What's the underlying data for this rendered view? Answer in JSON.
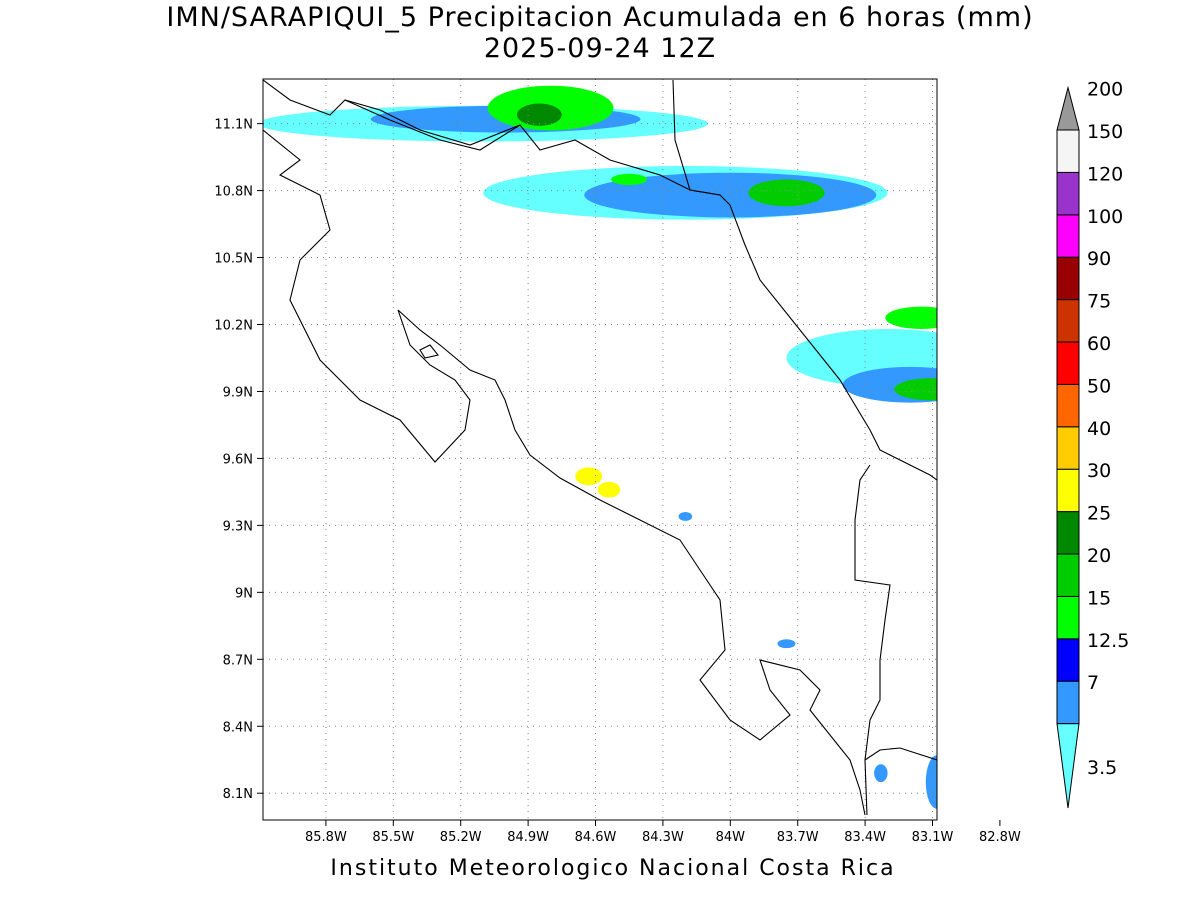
{
  "title_line1": "IMN/SARAPIQUI_5 Precipitacion Acumulada en 6 horas (mm)",
  "title_line2": "2025-09-24 12Z",
  "credit": "Instituto Meteorologico Nacional Costa Rica",
  "map": {
    "lon_range": [
      -86.08,
      -83.08
    ],
    "lat_range": [
      7.98,
      11.3
    ],
    "lon_ticks": [
      {
        "value": -85.8,
        "label": "85.8W"
      },
      {
        "value": -85.5,
        "label": "85.5W"
      },
      {
        "value": -85.2,
        "label": "85.2W"
      },
      {
        "value": -84.9,
        "label": "84.9W"
      },
      {
        "value": -84.6,
        "label": "84.6W"
      },
      {
        "value": -84.3,
        "label": "84.3W"
      },
      {
        "value": -84.0,
        "label": "84W"
      },
      {
        "value": -83.7,
        "label": "83.7W"
      },
      {
        "value": -83.4,
        "label": "83.4W"
      },
      {
        "value": -83.1,
        "label": "83.1W"
      },
      {
        "value": -82.8,
        "label": "82.8W"
      }
    ],
    "lat_ticks": [
      {
        "value": 11.1,
        "label": "11.1N"
      },
      {
        "value": 10.8,
        "label": "10.8N"
      },
      {
        "value": 10.5,
        "label": "10.5N"
      },
      {
        "value": 10.2,
        "label": "10.2N"
      },
      {
        "value": 9.9,
        "label": "9.9N"
      },
      {
        "value": 9.6,
        "label": "9.6N"
      },
      {
        "value": 9.3,
        "label": "9.3N"
      },
      {
        "value": 9.0,
        "label": "9N"
      },
      {
        "value": 8.7,
        "label": "8.7N"
      },
      {
        "value": 8.4,
        "label": "8.4N"
      },
      {
        "value": 8.1,
        "label": "8.1N"
      }
    ],
    "grid": "dotted"
  },
  "colorbar": {
    "levels": [
      {
        "label": "3.5",
        "color": "#66ffff"
      },
      {
        "label": "7",
        "color": "#3399ff"
      },
      {
        "label": "12.5",
        "color": "#0000ff"
      },
      {
        "label": "15",
        "color": "#00ff00"
      },
      {
        "label": "20",
        "color": "#00cc00"
      },
      {
        "label": "25",
        "color": "#008800"
      },
      {
        "label": "30",
        "color": "#ffff00"
      },
      {
        "label": "40",
        "color": "#ffcc00"
      },
      {
        "label": "50",
        "color": "#ff6600"
      },
      {
        "label": "60",
        "color": "#ff0000"
      },
      {
        "label": "75",
        "color": "#cc3300"
      },
      {
        "label": "90",
        "color": "#990000"
      },
      {
        "label": "100",
        "color": "#ff00ff"
      },
      {
        "label": "120",
        "color": "#9933cc"
      },
      {
        "label": "150",
        "color": "#f5f5f5"
      },
      {
        "label": "200",
        "color": "#999999"
      }
    ]
  },
  "precipitation_cells": [
    {
      "area": "north-west",
      "lon": -85.1,
      "lat": 11.1,
      "rx": 1.0,
      "ry": 0.08,
      "category": "3.5"
    },
    {
      "area": "north-west",
      "lon": -85.0,
      "lat": 11.12,
      "rx": 0.6,
      "ry": 0.06,
      "category": "7"
    },
    {
      "area": "north-west",
      "lon": -84.8,
      "lat": 11.17,
      "rx": 0.28,
      "ry": 0.1,
      "category": "15"
    },
    {
      "area": "north-west",
      "lon": -84.85,
      "lat": 11.14,
      "rx": 0.1,
      "ry": 0.05,
      "category": "25"
    },
    {
      "area": "north",
      "lon": -84.2,
      "lat": 10.79,
      "rx": 0.9,
      "ry": 0.12,
      "category": "3.5"
    },
    {
      "area": "north",
      "lon": -84.0,
      "lat": 10.78,
      "rx": 0.65,
      "ry": 0.1,
      "category": "7"
    },
    {
      "area": "north",
      "lon": -83.75,
      "lat": 10.79,
      "rx": 0.17,
      "ry": 0.06,
      "category": "20"
    },
    {
      "area": "north",
      "lon": -84.45,
      "lat": 10.85,
      "rx": 0.08,
      "ry": 0.025,
      "category": "15"
    },
    {
      "area": "caribbean",
      "lon": -83.3,
      "lat": 10.05,
      "rx": 0.45,
      "ry": 0.13,
      "category": "3.5"
    },
    {
      "area": "caribbean",
      "lon": -83.2,
      "lat": 9.93,
      "rx": 0.3,
      "ry": 0.08,
      "category": "7"
    },
    {
      "area": "caribbean",
      "lon": -83.1,
      "lat": 9.91,
      "rx": 0.17,
      "ry": 0.05,
      "category": "20"
    },
    {
      "area": "caribbean",
      "lon": -83.15,
      "lat": 10.23,
      "rx": 0.16,
      "ry": 0.05,
      "category": "15"
    },
    {
      "area": "pacific",
      "lon": -84.63,
      "lat": 9.52,
      "rx": 0.06,
      "ry": 0.04,
      "category": "30"
    },
    {
      "area": "pacific",
      "lon": -84.54,
      "lat": 9.46,
      "rx": 0.05,
      "ry": 0.035,
      "category": "30"
    },
    {
      "area": "pacific",
      "lon": -84.2,
      "lat": 9.34,
      "rx": 0.03,
      "ry": 0.02,
      "category": "7"
    },
    {
      "area": "south",
      "lon": -83.33,
      "lat": 8.19,
      "rx": 0.03,
      "ry": 0.04,
      "category": "7"
    },
    {
      "area": "south",
      "lon": -83.08,
      "lat": 8.15,
      "rx": 0.05,
      "ry": 0.12,
      "category": "7"
    },
    {
      "area": "south",
      "lon": -83.75,
      "lat": 8.77,
      "rx": 0.04,
      "ry": 0.02,
      "category": "7"
    }
  ]
}
